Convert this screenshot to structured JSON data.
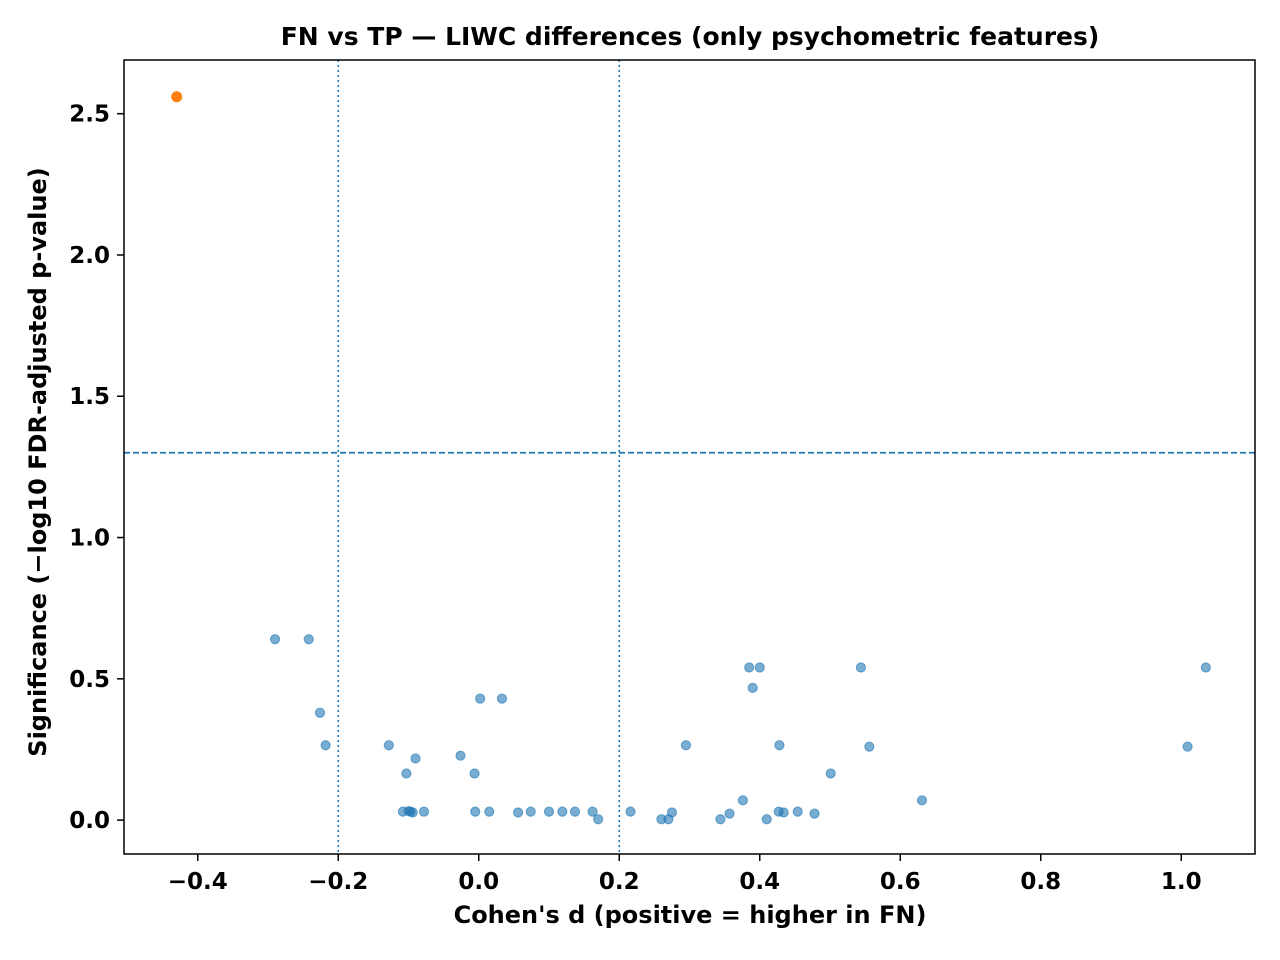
{
  "chart_data": {
    "type": "scatter",
    "title": "FN vs TP — LIWC differences (only psychometric features)",
    "xlabel": "Cohen's d (positive = higher in FN)",
    "ylabel": "Significance (−log10 FDR-adjusted p-value)",
    "xlim": [
      -0.505,
      1.105
    ],
    "ylim": [
      -0.12,
      2.69
    ],
    "xticks": [
      -0.4,
      -0.2,
      0.0,
      0.2,
      0.4,
      0.6,
      0.8,
      1.0
    ],
    "xtick_labels": [
      "−0.4",
      "−0.2",
      "0.0",
      "0.2",
      "0.4",
      "0.6",
      "0.8",
      "1.0"
    ],
    "yticks": [
      0.0,
      0.5,
      1.0,
      1.5,
      2.0,
      2.5
    ],
    "ytick_labels": [
      "0.0",
      "0.5",
      "1.0",
      "1.5",
      "2.0",
      "2.5"
    ],
    "grid": false,
    "reference_lines": {
      "vertical": [
        -0.2,
        0.2
      ],
      "horizontal": [
        1.3
      ]
    },
    "colors": {
      "nonsignificant": "#1f77b4",
      "significant": "#ff7f0e",
      "reference": "#1f77b4"
    },
    "series": [
      {
        "significant": false,
        "points": [
          [
            -0.29,
            0.64
          ],
          [
            -0.242,
            0.64
          ],
          [
            -0.226,
            0.38
          ],
          [
            -0.218,
            0.265
          ],
          [
            -0.128,
            0.265
          ],
          [
            -0.108,
            0.03
          ],
          [
            -0.103,
            0.165
          ],
          [
            -0.1,
            0.032
          ],
          [
            -0.097,
            0.03
          ],
          [
            -0.094,
            0.027
          ],
          [
            -0.09,
            0.218
          ],
          [
            -0.078,
            0.03
          ],
          [
            -0.026,
            0.228
          ],
          [
            -0.006,
            0.165
          ],
          [
            -0.005,
            0.03
          ],
          [
            0.002,
            0.43
          ],
          [
            0.015,
            0.03
          ],
          [
            0.033,
            0.43
          ],
          [
            0.056,
            0.027
          ],
          [
            0.074,
            0.03
          ],
          [
            0.1,
            0.03
          ],
          [
            0.119,
            0.03
          ],
          [
            0.137,
            0.03
          ],
          [
            0.162,
            0.03
          ],
          [
            0.17,
            0.003
          ],
          [
            0.216,
            0.03
          ],
          [
            0.26,
            0.003
          ],
          [
            0.27,
            0.003
          ],
          [
            0.275,
            0.027
          ],
          [
            0.295,
            0.265
          ],
          [
            0.344,
            0.003
          ],
          [
            0.357,
            0.023
          ],
          [
            0.376,
            0.07
          ],
          [
            0.385,
            0.54
          ],
          [
            0.39,
            0.468
          ],
          [
            0.4,
            0.54
          ],
          [
            0.41,
            0.003
          ],
          [
            0.427,
            0.03
          ],
          [
            0.428,
            0.265
          ],
          [
            0.434,
            0.027
          ],
          [
            0.454,
            0.03
          ],
          [
            0.478,
            0.023
          ],
          [
            0.501,
            0.165
          ],
          [
            0.544,
            0.54
          ],
          [
            0.556,
            0.26
          ],
          [
            0.631,
            0.07
          ],
          [
            1.009,
            0.26
          ],
          [
            1.035,
            0.54
          ]
        ]
      },
      {
        "significant": true,
        "points": [
          [
            -0.43,
            2.56
          ]
        ]
      }
    ]
  }
}
